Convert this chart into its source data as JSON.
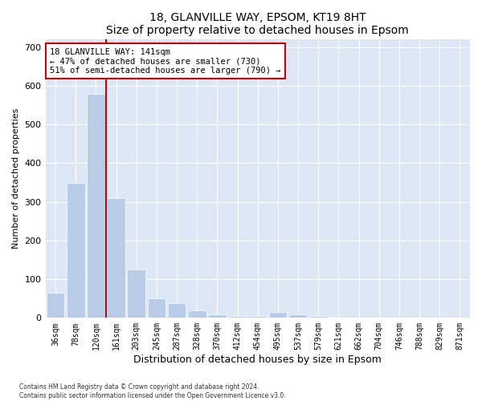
{
  "title1": "18, GLANVILLE WAY, EPSOM, KT19 8HT",
  "title2": "Size of property relative to detached houses in Epsom",
  "xlabel": "Distribution of detached houses by size in Epsom",
  "ylabel": "Number of detached properties",
  "bar_labels": [
    "36sqm",
    "78sqm",
    "120sqm",
    "161sqm",
    "203sqm",
    "245sqm",
    "287sqm",
    "328sqm",
    "370sqm",
    "412sqm",
    "454sqm",
    "495sqm",
    "537sqm",
    "579sqm",
    "621sqm",
    "662sqm",
    "704sqm",
    "746sqm",
    "788sqm",
    "829sqm",
    "871sqm"
  ],
  "bar_values": [
    65,
    350,
    580,
    310,
    125,
    50,
    38,
    20,
    10,
    5,
    5,
    15,
    10,
    5,
    0,
    0,
    0,
    0,
    0,
    0,
    0
  ],
  "bar_color": "#b8ccе8",
  "bar_color_hex": "#b8cce8",
  "bar_edge_color": "white",
  "background_color": "#dce6f5",
  "vline_color": "#cc0000",
  "vline_pos": 2.51,
  "annotation_text": "18 GLANVILLE WAY: 141sqm\n← 47% of detached houses are smaller (730)\n51% of semi-detached houses are larger (790) →",
  "annotation_box_facecolor": "#ffffff",
  "annotation_box_edge": "#cc0000",
  "ylim": [
    0,
    720
  ],
  "yticks": [
    0,
    100,
    200,
    300,
    400,
    500,
    600,
    700
  ],
  "footer1": "Contains HM Land Registry data © Crown copyright and database right 2024.",
  "footer2": "Contains public sector information licensed under the Open Government Licence v3.0."
}
